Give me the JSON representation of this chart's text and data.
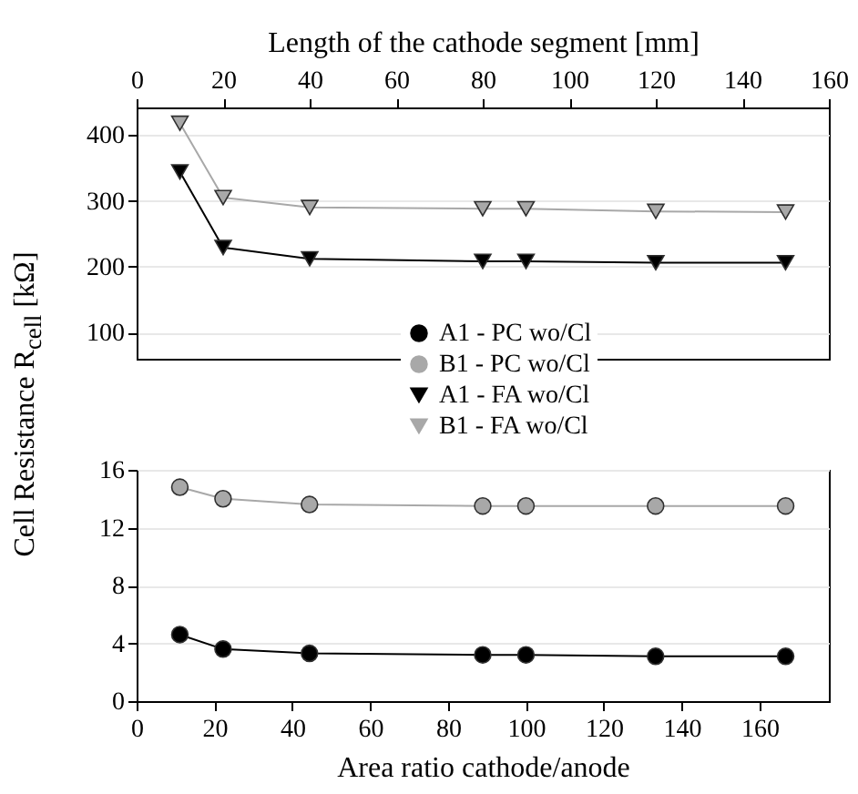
{
  "chart_data": [
    {
      "type": "line",
      "xlabel": "Length of the cathode segment [mm]",
      "xlim": [
        0,
        160
      ],
      "xticks": [
        0,
        20,
        40,
        60,
        80,
        100,
        120,
        140,
        160
      ],
      "ylim": [
        60,
        442
      ],
      "yticks": [
        100,
        200,
        300,
        400
      ],
      "grid": "y",
      "legend": "bottom",
      "series": [
        {
          "name": "A1 - FA wo/Cl",
          "color": "#000000",
          "marker": "triangle",
          "x": [
            10,
            20,
            40,
            80,
            90,
            120,
            150
          ],
          "values": [
            344,
            229,
            212,
            208,
            208,
            206,
            206
          ]
        },
        {
          "name": "B1 - FA wo/Cl",
          "color": "#a8a8a8",
          "marker": "triangle",
          "x": [
            10,
            20,
            40,
            80,
            90,
            120,
            150
          ],
          "values": [
            418,
            305,
            290,
            288,
            288,
            284,
            283
          ]
        }
      ]
    },
    {
      "type": "line",
      "xlabel": "Area ratio cathode/anode",
      "ylabel": "Cell Resistance R$_{cell}$ [kΩ]",
      "xlim": [
        0,
        177.8
      ],
      "xticks": [
        0,
        20,
        40,
        60,
        80,
        100,
        120,
        140,
        160
      ],
      "ylim": [
        0,
        16
      ],
      "yticks": [
        0,
        4,
        8,
        12,
        16
      ],
      "grid": "y",
      "legend": "top",
      "series": [
        {
          "name": "A1 - PC wo/Cl",
          "color": "#000000",
          "marker": "circle",
          "x": [
            11.1,
            22.2,
            44.4,
            88.9,
            100,
            133.3,
            166.7
          ],
          "values": [
            4.6,
            3.6,
            3.3,
            3.2,
            3.2,
            3.1,
            3.1
          ]
        },
        {
          "name": "B1 - PC wo/Cl",
          "color": "#a8a8a8",
          "marker": "circle",
          "x": [
            11.1,
            22.2,
            44.4,
            88.9,
            100,
            133.3,
            166.7
          ],
          "values": [
            14.8,
            14.0,
            13.6,
            13.5,
            13.5,
            13.5,
            13.5
          ]
        }
      ]
    }
  ]
}
